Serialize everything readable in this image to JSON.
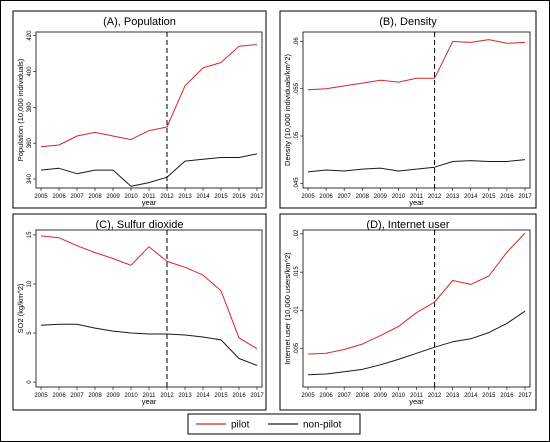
{
  "chart_data": [
    {
      "type": "line",
      "title": "(A), Population",
      "xlabel": "year",
      "ylabel": "Population (10,000 individuals)",
      "x": [
        2005,
        2006,
        2007,
        2008,
        2009,
        2010,
        2011,
        2012,
        2013,
        2014,
        2015,
        2016,
        2017
      ],
      "xtick_labels": [
        "2005",
        "2006",
        "2007",
        "2008",
        "2009",
        "2010",
        "2011",
        "2012",
        "2013",
        "2014",
        "2015",
        "2016",
        "2017"
      ],
      "ylim": [
        335,
        422
      ],
      "yticks": [
        340,
        360,
        380,
        400,
        420
      ],
      "ytick_labels": [
        "340",
        "360",
        "380",
        "400",
        "420"
      ],
      "vline_x": 2012,
      "series": [
        {
          "name": "pilot",
          "color": "#d62728",
          "values": [
            358,
            359,
            364,
            366,
            364,
            362,
            367,
            369,
            392,
            402,
            405,
            414,
            415
          ]
        },
        {
          "name": "non-pilot",
          "color": "#1a1a1a",
          "values": [
            345,
            346,
            343,
            345,
            345,
            336,
            338,
            341,
            350,
            351,
            352,
            352,
            354
          ]
        }
      ]
    },
    {
      "type": "line",
      "title": "(B), Density",
      "xlabel": "year",
      "ylabel": "Density (10,000 individuals/km^2)",
      "x": [
        2005,
        2006,
        2007,
        2008,
        2009,
        2010,
        2011,
        2012,
        2013,
        2014,
        2015,
        2016,
        2017
      ],
      "xtick_labels": [
        "2005",
        "2006",
        "2007",
        "2008",
        "2009",
        "2010",
        "2011",
        "2012",
        "2013",
        "2014",
        "2015",
        "2016",
        "2017"
      ],
      "ylim": [
        0.0445,
        0.061
      ],
      "yticks": [
        0.045,
        0.05,
        0.055,
        0.06
      ],
      "ytick_labels": [
        ".045",
        ".05",
        ".055",
        ".06"
      ],
      "vline_x": 2012,
      "series": [
        {
          "name": "pilot",
          "color": "#d62728",
          "values": [
            0.0549,
            0.055,
            0.0553,
            0.0556,
            0.0559,
            0.0557,
            0.0561,
            0.0561,
            0.06,
            0.0599,
            0.0602,
            0.0598,
            0.0599
          ]
        },
        {
          "name": "non-pilot",
          "color": "#1a1a1a",
          "values": [
            0.0462,
            0.0464,
            0.0463,
            0.0465,
            0.0466,
            0.0463,
            0.0465,
            0.0467,
            0.0473,
            0.0474,
            0.0473,
            0.0473,
            0.0475
          ]
        }
      ]
    },
    {
      "type": "line",
      "title": "(C), Sulfur dioxide",
      "xlabel": "year",
      "ylabel": "SO2 (kg/km^2)",
      "x": [
        2005,
        2006,
        2007,
        2008,
        2009,
        2010,
        2011,
        2012,
        2013,
        2014,
        2015,
        2016,
        2017
      ],
      "xtick_labels": [
        "2005",
        "2006",
        "2007",
        "2008",
        "2009",
        "2010",
        "2011",
        "2012",
        "2013",
        "2014",
        "2015",
        "2016",
        "2017"
      ],
      "ylim": [
        -0.5,
        15.5
      ],
      "yticks": [
        0,
        5,
        10,
        15
      ],
      "ytick_labels": [
        "0",
        "5",
        "10",
        "15"
      ],
      "vline_x": 2012,
      "series": [
        {
          "name": "pilot",
          "color": "#d62728",
          "values": [
            14.9,
            14.7,
            13.9,
            13.2,
            12.6,
            11.9,
            13.8,
            12.3,
            11.7,
            10.9,
            9.3,
            4.5,
            3.4
          ]
        },
        {
          "name": "non-pilot",
          "color": "#1a1a1a",
          "values": [
            5.8,
            5.9,
            5.9,
            5.5,
            5.2,
            5.0,
            4.9,
            4.9,
            4.8,
            4.6,
            4.3,
            2.4,
            1.7
          ]
        }
      ]
    },
    {
      "type": "line",
      "title": "(D), Internet user",
      "xlabel": "year",
      "ylabel": "Internet user (10,000 users/km^2)",
      "x": [
        2005,
        2006,
        2007,
        2008,
        2009,
        2010,
        2011,
        2012,
        2013,
        2014,
        2015,
        2016,
        2017
      ],
      "xtick_labels": [
        "2005",
        "2006",
        "2007",
        "2008",
        "2009",
        "2010",
        "2011",
        "2012",
        "2013",
        "2014",
        "2015",
        "2016",
        "2017"
      ],
      "ylim": [
        0.0,
        0.0205
      ],
      "yticks": [
        0.005,
        0.01,
        0.015,
        0.02
      ],
      "ytick_labels": [
        ".005",
        ".01",
        ".015",
        ".02"
      ],
      "vline_x": 2012,
      "series": [
        {
          "name": "pilot",
          "color": "#d62728",
          "values": [
            0.0043,
            0.0044,
            0.0049,
            0.0056,
            0.0067,
            0.0079,
            0.0097,
            0.0111,
            0.0139,
            0.0134,
            0.0145,
            0.0176,
            0.0201
          ]
        },
        {
          "name": "non-pilot",
          "color": "#1a1a1a",
          "values": [
            0.0016,
            0.0017,
            0.002,
            0.0023,
            0.0029,
            0.0036,
            0.0044,
            0.0052,
            0.0059,
            0.0063,
            0.0071,
            0.0083,
            0.0099
          ]
        }
      ]
    }
  ],
  "legend": {
    "position": "bottom",
    "items": [
      {
        "label": "pilot",
        "color": "#d62728"
      },
      {
        "label": "non-pilot",
        "color": "#1a1a1a"
      }
    ]
  }
}
